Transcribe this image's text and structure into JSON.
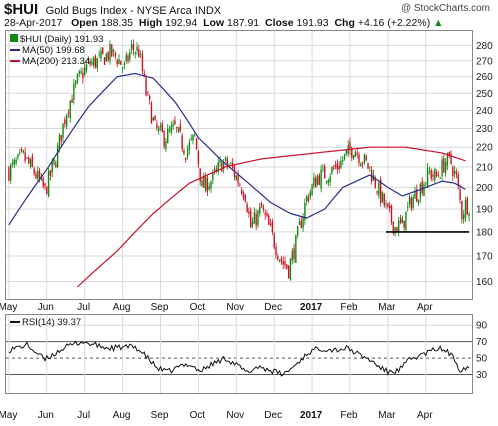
{
  "header": {
    "ticker": "$HUI",
    "name": "Gold Bugs Index - NYSE Arca INDX",
    "watermark": "@ StockCharts.com",
    "date": "28-Apr-2017",
    "open_label": "Open",
    "open": "188.35",
    "high_label": "High",
    "high": "192.94",
    "low_label": "Low",
    "low": "187.91",
    "close_label": "Close",
    "close": "191.93",
    "chg_label": "Chg",
    "chg": "+4.16 (+2.22%)",
    "chg_arrow": "▲"
  },
  "legend": {
    "price": "$HUI (Daily) 191.93",
    "ma50": "MA(50) 199.68",
    "ma200": "MA(200) 213.34",
    "rsi": "RSI(14) 39.37"
  },
  "colors": {
    "up": "#118811",
    "down": "#cc1122",
    "ma50": "#2a2d8a",
    "ma200": "#c8102e",
    "grid": "#d9d9d9",
    "rsi": "#111111",
    "hline": "#000000"
  },
  "x_labels": [
    "May",
    "Jun",
    "Jul",
    "Aug",
    "Sep",
    "Oct",
    "Nov",
    "Dec",
    "2017",
    "Feb",
    "Mar",
    "Apr"
  ],
  "chart_data": [
    {
      "type": "candlestick",
      "title": "$HUI Gold Bugs Index - NYSE Arca INDX",
      "yticks": [
        160,
        170,
        180,
        190,
        200,
        210,
        220,
        230,
        240,
        250,
        260,
        270,
        280
      ],
      "ylim": [
        155,
        287
      ],
      "scale": "log",
      "months": [
        "May",
        "Jun",
        "Jul",
        "Aug",
        "Sep",
        "Oct",
        "Nov",
        "Dec",
        "2017",
        "Feb",
        "Mar",
        "Apr"
      ],
      "month_start_index": [
        0,
        21,
        42,
        63,
        84,
        105,
        126,
        147,
        168,
        189,
        210,
        231
      ],
      "anchor_close": [
        [
          0,
          208
        ],
        [
          8,
          215
        ],
        [
          15,
          206
        ],
        [
          20,
          198
        ],
        [
          26,
          214
        ],
        [
          32,
          240
        ],
        [
          38,
          257
        ],
        [
          44,
          268
        ],
        [
          50,
          270
        ],
        [
          56,
          275
        ],
        [
          60,
          272
        ],
        [
          64,
          265
        ],
        [
          68,
          278
        ],
        [
          72,
          276
        ],
        [
          76,
          250
        ],
        [
          81,
          230
        ],
        [
          86,
          225
        ],
        [
          92,
          230
        ],
        [
          98,
          218
        ],
        [
          103,
          225
        ],
        [
          107,
          200
        ],
        [
          113,
          204
        ],
        [
          118,
          212
        ],
        [
          123,
          210
        ],
        [
          126,
          205
        ],
        [
          131,
          197
        ],
        [
          134,
          182
        ],
        [
          140,
          190
        ],
        [
          146,
          178
        ],
        [
          151,
          168
        ],
        [
          155,
          165
        ],
        [
          159,
          175
        ],
        [
          165,
          195
        ],
        [
          171,
          205
        ],
        [
          177,
          207
        ],
        [
          182,
          210
        ],
        [
          187,
          216
        ],
        [
          191,
          220
        ],
        [
          195,
          215
        ],
        [
          200,
          209
        ],
        [
          205,
          198
        ],
        [
          210,
          188
        ],
        [
          214,
          182
        ],
        [
          218,
          183
        ],
        [
          223,
          194
        ],
        [
          228,
          200
        ],
        [
          233,
          207
        ],
        [
          237,
          205
        ],
        [
          242,
          213
        ],
        [
          245,
          212
        ],
        [
          248,
          204
        ],
        [
          251,
          188
        ],
        [
          253,
          192
        ]
      ],
      "series": [
        {
          "name": "$HUI (Daily)",
          "last": 191.93
        },
        {
          "name": "MA(50)",
          "last": 199.68,
          "anchors": [
            [
              0,
              183
            ],
            [
              22,
              210
            ],
            [
              44,
              242
            ],
            [
              60,
              260
            ],
            [
              70,
              262
            ],
            [
              80,
              259
            ],
            [
              92,
              245
            ],
            [
              105,
              225
            ],
            [
              118,
              213
            ],
            [
              130,
              204
            ],
            [
              145,
              193
            ],
            [
              156,
              188
            ],
            [
              165,
              186
            ],
            [
              175,
              190
            ],
            [
              185,
              200
            ],
            [
              200,
              206
            ],
            [
              210,
              200
            ],
            [
              218,
              196
            ],
            [
              228,
              199
            ],
            [
              240,
              203
            ],
            [
              247,
              202
            ],
            [
              253,
              199
            ]
          ]
        },
        {
          "name": "MA(200)",
          "last": 213.34,
          "anchors": [
            [
              38,
              158
            ],
            [
              60,
              172
            ],
            [
              80,
              188
            ],
            [
              100,
              202
            ],
            [
              120,
              210
            ],
            [
              140,
              214
            ],
            [
              160,
              216
            ],
            [
              180,
              218
            ],
            [
              200,
              220
            ],
            [
              220,
              220
            ],
            [
              240,
              217
            ],
            [
              253,
              213
            ]
          ]
        }
      ],
      "support_line": {
        "value": 180,
        "from_index": 209,
        "to_index": 255
      }
    },
    {
      "type": "line",
      "title": "RSI(14)",
      "yticks": [
        30,
        50,
        70,
        90
      ],
      "ylim": [
        10,
        100
      ],
      "reference_lines": [
        30,
        50,
        70
      ],
      "last": 39.37,
      "anchors": [
        [
          0,
          60
        ],
        [
          10,
          66
        ],
        [
          20,
          48
        ],
        [
          30,
          62
        ],
        [
          40,
          70
        ],
        [
          55,
          62
        ],
        [
          70,
          64
        ],
        [
          76,
          52
        ],
        [
          82,
          38
        ],
        [
          88,
          33
        ],
        [
          95,
          40
        ],
        [
          100,
          43
        ],
        [
          106,
          34
        ],
        [
          112,
          42
        ],
        [
          120,
          50
        ],
        [
          126,
          42
        ],
        [
          132,
          32
        ],
        [
          138,
          40
        ],
        [
          145,
          35
        ],
        [
          152,
          30
        ],
        [
          158,
          40
        ],
        [
          166,
          57
        ],
        [
          172,
          62
        ],
        [
          180,
          60
        ],
        [
          188,
          62
        ],
        [
          194,
          54
        ],
        [
          200,
          48
        ],
        [
          206,
          38
        ],
        [
          210,
          33
        ],
        [
          216,
          35
        ],
        [
          222,
          48
        ],
        [
          230,
          55
        ],
        [
          238,
          62
        ],
        [
          243,
          58
        ],
        [
          247,
          48
        ],
        [
          250,
          36
        ],
        [
          253,
          39
        ]
      ]
    }
  ]
}
